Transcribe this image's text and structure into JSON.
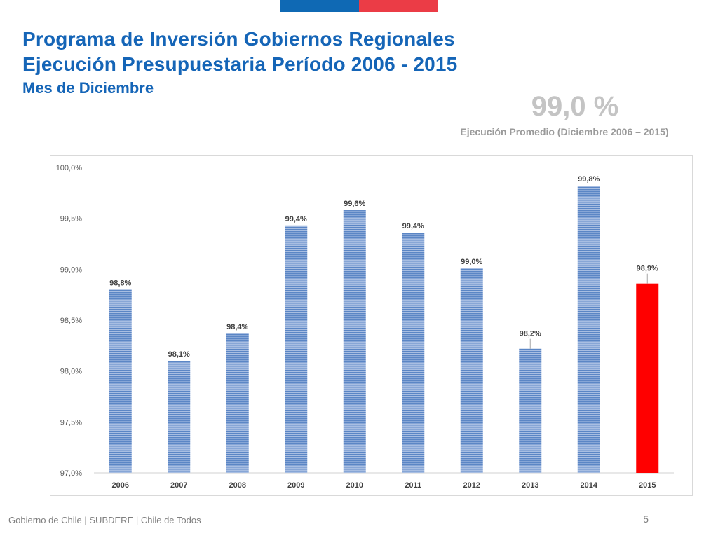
{
  "header": {
    "title_line1": "Programa de Inversión Gobiernos Regionales",
    "title_line2": "Ejecución Presupuestaria Período 2006 - 2015",
    "subtitle": "Mes de Diciembre"
  },
  "summary": {
    "average_value": "99,0 %",
    "average_label": "Ejecución Promedio (Diciembre 2006 – 2015)"
  },
  "colors": {
    "flag_blue": "#0f69b4",
    "flag_red": "#eb3c46",
    "title": "#1565b7",
    "bar": "#5b86c5",
    "bar_stripe": "#c9d7ee",
    "highlight_bar": "#ff0000"
  },
  "chart_data": {
    "type": "bar",
    "categories": [
      "2006",
      "2007",
      "2008",
      "2009",
      "2010",
      "2011",
      "2012",
      "2013",
      "2014",
      "2015"
    ],
    "values": [
      98.8,
      98.1,
      98.37,
      99.43,
      99.58,
      99.36,
      99.01,
      98.22,
      99.82,
      98.86
    ],
    "data_labels": [
      "98,8%",
      "98,1%",
      "98,4%",
      "99,4%",
      "99,6%",
      "99,4%",
      "99,0%",
      "98,2%",
      "99,8%",
      "98,9%"
    ],
    "highlight_category": "2015",
    "ylim": [
      97.0,
      100.0
    ],
    "yticks": [
      97.0,
      97.5,
      98.0,
      98.5,
      99.0,
      99.5,
      100.0
    ],
    "ytick_labels": [
      "97,0%",
      "97,5%",
      "98,0%",
      "98,5%",
      "99,0%",
      "99,5%",
      "100,0%"
    ],
    "grid": false,
    "legend": "none"
  },
  "footer": {
    "text": "Gobierno de Chile | SUBDERE | Chile de Todos",
    "page_number": "5"
  }
}
